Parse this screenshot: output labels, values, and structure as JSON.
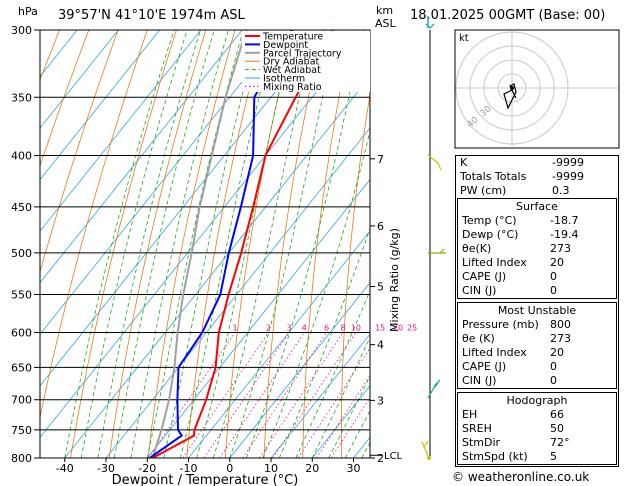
{
  "header": {
    "hpa_unit": "hPa",
    "location": "39°57'N  41°10'E  1974m  ASL",
    "km_label": "km",
    "asl_label": "ASL",
    "datetime": "18.01.2025  00GMT  (Base: 00)"
  },
  "chart_data": {
    "type": "line",
    "xlabel": "Dewpoint / Temperature (°C)",
    "ylabel": "hPa",
    "y2label": "Mixing Ratio (g/kg)",
    "x_ticks": [
      -40,
      -30,
      -20,
      -10,
      0,
      10,
      20,
      30
    ],
    "xlim": [
      -46,
      34
    ],
    "pressure_levels": [
      300,
      350,
      400,
      450,
      500,
      550,
      600,
      650,
      700,
      750,
      800
    ],
    "km_ticks": [
      {
        "km": "7",
        "p": 403
      },
      {
        "km": "6",
        "p": 470
      },
      {
        "km": "5",
        "p": 540
      },
      {
        "km": "4",
        "p": 617
      },
      {
        "km": "3",
        "p": 701
      },
      {
        "km": "2",
        "p": 800
      }
    ],
    "lcl_label": "LCL",
    "mixing_ratio_labels": [
      "1",
      "2",
      "3",
      "4",
      "6",
      "8",
      "10",
      "15",
      "20",
      "25"
    ],
    "mixing_ratio_values": [
      1,
      2,
      3,
      4,
      6,
      8,
      10,
      15,
      20,
      25
    ],
    "legend": [
      "Temperature",
      "Dewpoint",
      "Parcel Trajectory",
      "Dry Adiabat",
      "Wet Adiabat",
      "Isotherm",
      "Mixing Ratio"
    ],
    "legend_position": "top-left",
    "series": [
      {
        "name": "Temperature",
        "color": "#ff0000",
        "points": [
          [
            800,
            -18.7
          ],
          [
            760,
            -13
          ],
          [
            750,
            -14
          ],
          [
            700,
            -17
          ],
          [
            650,
            -21
          ],
          [
            600,
            -27
          ],
          [
            550,
            -32
          ],
          [
            500,
            -37
          ],
          [
            450,
            -43
          ],
          [
            400,
            -50
          ],
          [
            350,
            -54
          ],
          [
            300,
            -58
          ]
        ]
      },
      {
        "name": "Dewpoint",
        "color": "#0000ff",
        "points": [
          [
            800,
            -19.4
          ],
          [
            760,
            -16
          ],
          [
            750,
            -18
          ],
          [
            700,
            -24
          ],
          [
            650,
            -30
          ],
          [
            600,
            -31
          ],
          [
            550,
            -34
          ],
          [
            500,
            -40
          ],
          [
            450,
            -46
          ],
          [
            400,
            -53
          ],
          [
            350,
            -64
          ],
          [
            300,
            -68
          ]
        ]
      },
      {
        "name": "Parcel Trajectory",
        "color": "#a0a0a0",
        "points": [
          [
            800,
            -18.7
          ],
          [
            750,
            -22
          ],
          [
            700,
            -26
          ],
          [
            650,
            -31
          ],
          [
            600,
            -37
          ],
          [
            550,
            -43
          ],
          [
            500,
            -49
          ],
          [
            450,
            -56
          ],
          [
            400,
            -63
          ],
          [
            350,
            -71
          ],
          [
            300,
            -79
          ]
        ]
      }
    ]
  },
  "hodograph": {
    "label": "kt",
    "ring_labels": [
      "40",
      "30"
    ]
  },
  "indices": [
    {
      "label": "K",
      "value": "-9999"
    },
    {
      "label": "Totals Totals",
      "value": "-9999"
    },
    {
      "label": "PW (cm)",
      "value": "0.3"
    }
  ],
  "surface": {
    "title": "Surface",
    "rows": [
      {
        "label": "Temp (°C)",
        "value": "-18.7"
      },
      {
        "label": "Dewp (°C)",
        "value": "-19.4"
      },
      {
        "label": "θe(K)",
        "value": "273"
      },
      {
        "label": "Lifted Index",
        "value": "20"
      },
      {
        "label": "CAPE (J)",
        "value": "0"
      },
      {
        "label": "CIN (J)",
        "value": "0"
      }
    ]
  },
  "most_unstable": {
    "title": "Most Unstable",
    "rows": [
      {
        "label": "Pressure (mb)",
        "value": "800"
      },
      {
        "label": "θe (K)",
        "value": "273"
      },
      {
        "label": "Lifted Index",
        "value": "20"
      },
      {
        "label": "CAPE (J)",
        "value": "0"
      },
      {
        "label": "CIN (J)",
        "value": "0"
      }
    ]
  },
  "hodograph_table": {
    "title": "Hodograph",
    "rows": [
      {
        "label": "EH",
        "value": "66"
      },
      {
        "label": "SREH",
        "value": "50"
      },
      {
        "label": "StmDir",
        "value": "72°"
      },
      {
        "label": "StmSpd (kt)",
        "value": "5"
      }
    ]
  },
  "footer": "© weatheronline.co.uk"
}
